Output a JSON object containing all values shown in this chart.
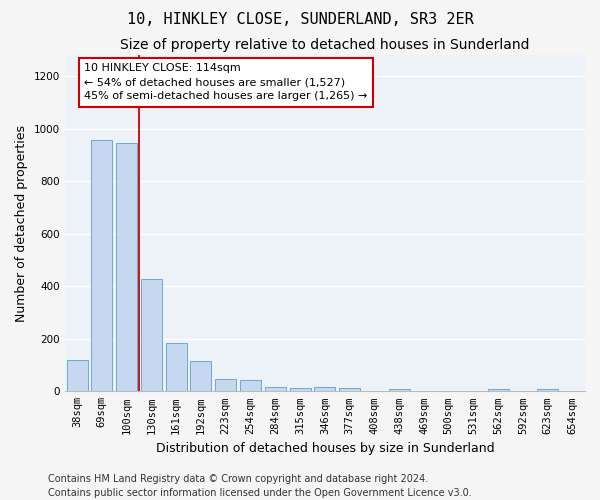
{
  "title": "10, HINKLEY CLOSE, SUNDERLAND, SR3 2ER",
  "subtitle": "Size of property relative to detached houses in Sunderland",
  "xlabel": "Distribution of detached houses by size in Sunderland",
  "ylabel": "Number of detached properties",
  "categories": [
    "38sqm",
    "69sqm",
    "100sqm",
    "130sqm",
    "161sqm",
    "192sqm",
    "223sqm",
    "254sqm",
    "284sqm",
    "315sqm",
    "346sqm",
    "377sqm",
    "408sqm",
    "438sqm",
    "469sqm",
    "500sqm",
    "531sqm",
    "562sqm",
    "592sqm",
    "623sqm",
    "654sqm"
  ],
  "values": [
    120,
    958,
    948,
    428,
    185,
    115,
    47,
    42,
    18,
    14,
    15,
    14,
    0,
    8,
    0,
    0,
    0,
    8,
    0,
    8,
    0
  ],
  "bar_color": "#c5d8ef",
  "bar_edge_color": "#6aaad4",
  "vline_x_index": 2,
  "vline_color": "#cc0000",
  "annotation_line1": "10 HINKLEY CLOSE: 114sqm",
  "annotation_line2": "← 54% of detached houses are smaller (1,527)",
  "annotation_line3": "45% of semi-detached houses are larger (1,265) →",
  "box_facecolor": "#ffffff",
  "box_edgecolor": "#cc0000",
  "ylim": [
    0,
    1280
  ],
  "yticks": [
    0,
    200,
    400,
    600,
    800,
    1000,
    1200
  ],
  "fig_background": "#f5f5f5",
  "ax_background": "#edf2f9",
  "grid_color": "#ffffff",
  "footer": "Contains HM Land Registry data © Crown copyright and database right 2024.\nContains public sector information licensed under the Open Government Licence v3.0.",
  "title_fontsize": 11,
  "subtitle_fontsize": 10,
  "ylabel_fontsize": 9,
  "xlabel_fontsize": 9,
  "tick_fontsize": 7.5,
  "annot_fontsize": 8,
  "footer_fontsize": 7
}
